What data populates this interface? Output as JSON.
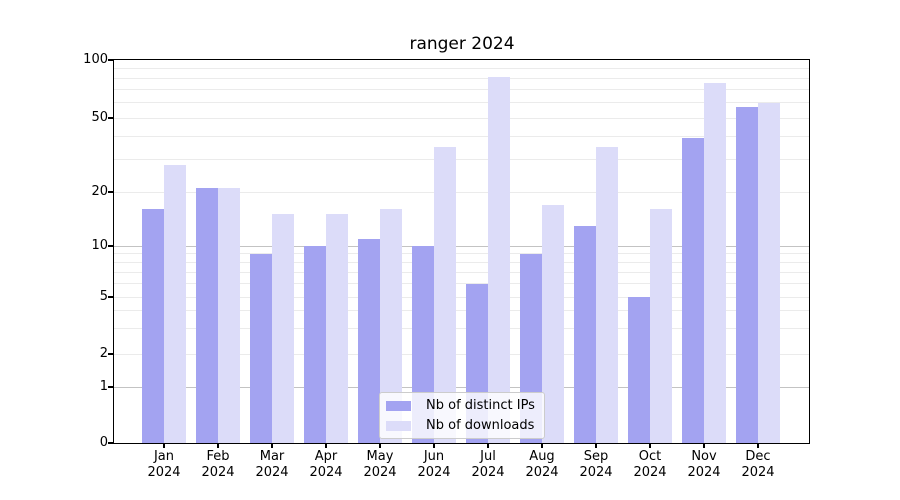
{
  "chart_data": {
    "type": "bar",
    "title": "ranger 2024",
    "categories": [
      "Jan",
      "Feb",
      "Mar",
      "Apr",
      "May",
      "Jun",
      "Jul",
      "Aug",
      "Sep",
      "Oct",
      "Nov",
      "Dec"
    ],
    "x_year_label": "2024",
    "series": [
      {
        "name": "Nb of distinct IPs",
        "color": "#a3a3f1",
        "values": [
          16,
          21,
          9,
          10,
          11,
          10,
          6,
          9,
          13,
          5,
          39,
          57
        ]
      },
      {
        "name": "Nb of downloads",
        "color": "#dcdcf9",
        "values": [
          28,
          21,
          15,
          15,
          16,
          35,
          82,
          17,
          35,
          16,
          76,
          60
        ]
      }
    ],
    "xlabel": "",
    "ylabel": "",
    "ylim": [
      0,
      100
    ],
    "yscale": "log-like with 0 baseline",
    "y_ticks": [
      100,
      50,
      20,
      10,
      5,
      2,
      1,
      0
    ],
    "grid": "horizontal",
    "legend_position": "lower center"
  },
  "colors": {
    "background": "#ffffff",
    "spine": "#000000",
    "grid_major": "#c3c3c3",
    "grid_minor": "#ebebeb",
    "text": "#000000"
  }
}
